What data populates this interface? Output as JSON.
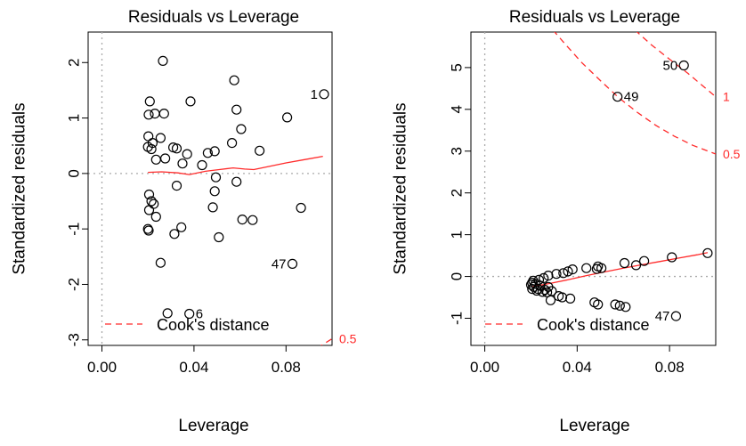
{
  "chart_data": [
    {
      "type": "scatter",
      "title": "Residuals vs Leverage",
      "xlabel": "Leverage",
      "ylabel": "Standardized residuals",
      "xlim": [
        -0.006,
        0.1
      ],
      "ylim": [
        -3.1,
        2.55
      ],
      "xticks": [
        0.0,
        0.04,
        0.08
      ],
      "xtick_labels": [
        "0.00",
        "0.04",
        "0.08"
      ],
      "yticks": [
        -3,
        -2,
        -1,
        0,
        1,
        2
      ],
      "ytick_labels": [
        "-3",
        "-2",
        "-1",
        "0",
        "1",
        "2"
      ],
      "points": [
        {
          "x": 0.0208,
          "y": 1.3
        },
        {
          "x": 0.0203,
          "y": 1.06
        },
        {
          "x": 0.023,
          "y": 1.08
        },
        {
          "x": 0.027,
          "y": 1.08
        },
        {
          "x": 0.0202,
          "y": 0.67
        },
        {
          "x": 0.022,
          "y": 0.55
        },
        {
          "x": 0.02,
          "y": 0.48
        },
        {
          "x": 0.0215,
          "y": 0.44
        },
        {
          "x": 0.0255,
          "y": 0.64
        },
        {
          "x": 0.0235,
          "y": 0.25
        },
        {
          "x": 0.0275,
          "y": 0.27
        },
        {
          "x": 0.031,
          "y": 0.47
        },
        {
          "x": 0.0325,
          "y": 0.45
        },
        {
          "x": 0.035,
          "y": 0.18
        },
        {
          "x": 0.0385,
          "y": 1.3
        },
        {
          "x": 0.0265,
          "y": 2.03
        },
        {
          "x": 0.037,
          "y": 0.35
        },
        {
          "x": 0.0435,
          "y": 0.15
        },
        {
          "x": 0.046,
          "y": 0.37
        },
        {
          "x": 0.049,
          "y": 0.4
        },
        {
          "x": 0.0565,
          "y": 0.55
        },
        {
          "x": 0.0575,
          "y": 1.68
        },
        {
          "x": 0.0585,
          "y": 1.15
        },
        {
          "x": 0.0605,
          "y": 0.8
        },
        {
          "x": 0.0685,
          "y": 0.41
        },
        {
          "x": 0.0805,
          "y": 1.01
        },
        {
          "x": 0.0965,
          "y": 1.43
        },
        {
          "x": 0.0205,
          "y": -0.38
        },
        {
          "x": 0.0215,
          "y": -0.5
        },
        {
          "x": 0.0225,
          "y": -0.55
        },
        {
          "x": 0.0205,
          "y": -0.66
        },
        {
          "x": 0.0235,
          "y": -0.78
        },
        {
          "x": 0.02,
          "y": -1.0
        },
        {
          "x": 0.0203,
          "y": -1.03
        },
        {
          "x": 0.0325,
          "y": -0.22
        },
        {
          "x": 0.0315,
          "y": -1.09
        },
        {
          "x": 0.0345,
          "y": -0.97
        },
        {
          "x": 0.0495,
          "y": -0.07
        },
        {
          "x": 0.049,
          "y": -0.32
        },
        {
          "x": 0.0482,
          "y": -0.61
        },
        {
          "x": 0.0508,
          "y": -1.15
        },
        {
          "x": 0.0585,
          "y": -0.15
        },
        {
          "x": 0.061,
          "y": -0.83
        },
        {
          "x": 0.0655,
          "y": -0.84
        },
        {
          "x": 0.0865,
          "y": -0.62
        },
        {
          "x": 0.0255,
          "y": -1.61
        },
        {
          "x": 0.0828,
          "y": -1.63
        },
        {
          "x": 0.0285,
          "y": -2.52
        },
        {
          "x": 0.038,
          "y": -2.53
        }
      ],
      "point_labels": [
        {
          "x": 0.0965,
          "y": 1.43,
          "text": "1",
          "side": "left"
        },
        {
          "x": 0.0828,
          "y": -1.63,
          "text": "47",
          "side": "left"
        },
        {
          "x": 0.038,
          "y": -2.53,
          "text": "6",
          "side": "right"
        }
      ],
      "smooth_line": {
        "x": [
          0.02,
          0.026,
          0.033,
          0.038,
          0.045,
          0.051,
          0.057,
          0.062,
          0.066,
          0.073,
          0.08,
          0.088,
          0.096
        ],
        "y": [
          0.02,
          0.03,
          0.01,
          -0.02,
          0.04,
          0.07,
          0.1,
          0.08,
          0.07,
          0.13,
          0.19,
          0.25,
          0.31
        ]
      },
      "cooks_contours": [
        {
          "label": "0.5",
          "x": [
            0.0935,
            0.1
          ],
          "y": [
            -3.15,
            -2.98
          ]
        }
      ],
      "legend": {
        "label": "Cook's distance",
        "position": "bottom-left"
      }
    },
    {
      "type": "scatter",
      "title": "Residuals vs Leverage",
      "xlabel": "Leverage",
      "ylabel": "Standardized residuals",
      "xlim": [
        -0.006,
        0.1
      ],
      "ylim": [
        -1.65,
        5.85
      ],
      "xticks": [
        0.0,
        0.04,
        0.08
      ],
      "xtick_labels": [
        "0.00",
        "0.04",
        "0.08"
      ],
      "yticks": [
        -1,
        0,
        1,
        2,
        3,
        4,
        5
      ],
      "ytick_labels": [
        "-1",
        "0",
        "1",
        "2",
        "3",
        "4",
        "5"
      ],
      "points": [
        {
          "x": 0.0862,
          "y": 5.05
        },
        {
          "x": 0.0575,
          "y": 4.3
        },
        {
          "x": 0.0965,
          "y": 0.56
        },
        {
          "x": 0.081,
          "y": 0.46
        },
        {
          "x": 0.069,
          "y": 0.37
        },
        {
          "x": 0.0655,
          "y": 0.27
        },
        {
          "x": 0.0605,
          "y": 0.32
        },
        {
          "x": 0.0505,
          "y": 0.2
        },
        {
          "x": 0.049,
          "y": 0.24
        },
        {
          "x": 0.0485,
          "y": 0.18
        },
        {
          "x": 0.044,
          "y": 0.2
        },
        {
          "x": 0.038,
          "y": 0.17
        },
        {
          "x": 0.036,
          "y": 0.12
        },
        {
          "x": 0.034,
          "y": 0.08
        },
        {
          "x": 0.031,
          "y": 0.06
        },
        {
          "x": 0.0275,
          "y": 0.02
        },
        {
          "x": 0.0255,
          "y": -0.04
        },
        {
          "x": 0.0235,
          "y": -0.08
        },
        {
          "x": 0.021,
          "y": -0.1
        },
        {
          "x": 0.0205,
          "y": -0.15
        },
        {
          "x": 0.02,
          "y": -0.2
        },
        {
          "x": 0.0212,
          "y": -0.25
        },
        {
          "x": 0.022,
          "y": -0.18
        },
        {
          "x": 0.023,
          "y": -0.3
        },
        {
          "x": 0.024,
          "y": -0.22
        },
        {
          "x": 0.0205,
          "y": -0.3
        },
        {
          "x": 0.0225,
          "y": -0.34
        },
        {
          "x": 0.026,
          "y": -0.32
        },
        {
          "x": 0.027,
          "y": -0.38
        },
        {
          "x": 0.029,
          "y": -0.35
        },
        {
          "x": 0.0285,
          "y": -0.57
        },
        {
          "x": 0.032,
          "y": -0.47
        },
        {
          "x": 0.0335,
          "y": -0.5
        },
        {
          "x": 0.037,
          "y": -0.53
        },
        {
          "x": 0.0475,
          "y": -0.62
        },
        {
          "x": 0.049,
          "y": -0.67
        },
        {
          "x": 0.0565,
          "y": -0.67
        },
        {
          "x": 0.0585,
          "y": -0.7
        },
        {
          "x": 0.061,
          "y": -0.73
        },
        {
          "x": 0.0828,
          "y": -0.95
        },
        {
          "x": 0.0275,
          "y": -0.25
        },
        {
          "x": 0.025,
          "y": -0.37
        }
      ],
      "point_labels": [
        {
          "x": 0.0862,
          "y": 5.05,
          "text": "50",
          "side": "left"
        },
        {
          "x": 0.0575,
          "y": 4.3,
          "text": "49",
          "side": "right"
        },
        {
          "x": 0.0828,
          "y": -0.95,
          "text": "47",
          "side": "left"
        }
      ],
      "smooth_line": {
        "x": [
          0.02,
          0.028,
          0.036,
          0.044,
          0.052,
          0.06,
          0.068,
          0.076,
          0.084,
          0.092,
          0.0965
        ],
        "y": [
          -0.25,
          -0.17,
          -0.08,
          0.02,
          0.11,
          0.2,
          0.28,
          0.36,
          0.44,
          0.52,
          0.57
        ]
      },
      "cooks_contours": [
        {
          "label": "1",
          "x": [
            0.065,
            0.072,
            0.08,
            0.088,
            0.094,
            0.1
          ],
          "y": [
            5.9,
            5.55,
            5.2,
            4.86,
            4.58,
            4.3
          ]
        },
        {
          "label": "0.5",
          "x": [
            0.0295,
            0.035,
            0.042,
            0.05,
            0.058,
            0.066,
            0.074,
            0.082,
            0.09,
            0.1
          ],
          "y": [
            5.9,
            5.55,
            5.12,
            4.69,
            4.28,
            3.93,
            3.62,
            3.36,
            3.14,
            2.93
          ]
        }
      ],
      "legend": {
        "label": "Cook's distance",
        "position": "bottom-left"
      }
    }
  ]
}
